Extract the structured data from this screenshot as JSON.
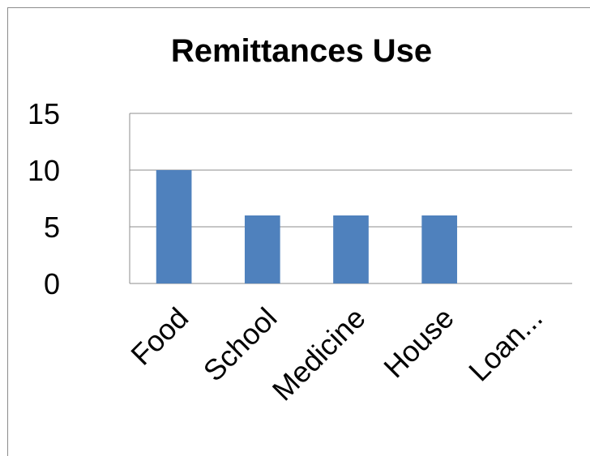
{
  "chart_data": {
    "type": "bar",
    "title": "Remittances Use",
    "categories": [
      "Food",
      "School",
      "Medicine",
      "House",
      "Loan..."
    ],
    "values": [
      10,
      6,
      6,
      6,
      0
    ],
    "xlabel": "",
    "ylabel": "",
    "ylim": [
      0,
      15
    ],
    "yticks": [
      "0",
      "5",
      "10",
      "15"
    ],
    "grid": true,
    "legend": "none",
    "colors": {
      "bar": "#4f81bd",
      "grid": "#8c8c8c"
    }
  }
}
